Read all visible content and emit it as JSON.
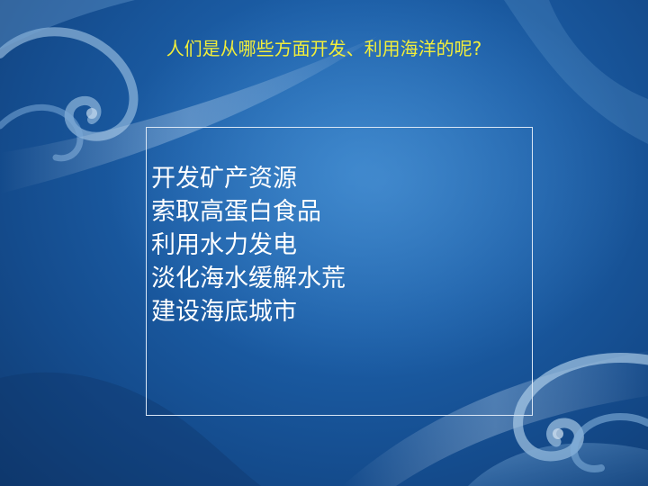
{
  "slide": {
    "title": "人们是从哪些方面开发、利用海洋的呢?",
    "items": [
      "开发矿产资源",
      "索取高蛋白食品",
      "利用水力发电",
      "淡化海水缓解水荒",
      "建设海底城市"
    ]
  },
  "colors": {
    "background": "#1c5fa8",
    "title_text": "#f2ee3a",
    "body_text": "#ffffff",
    "box_border": "#d9e6f5"
  }
}
